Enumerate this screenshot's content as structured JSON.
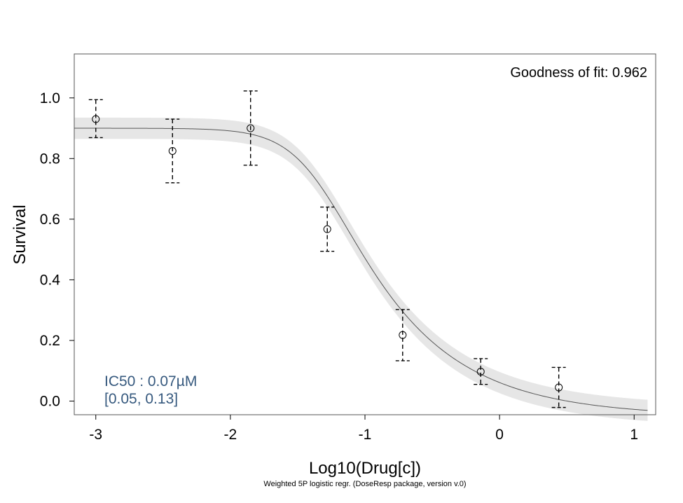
{
  "chart_data": {
    "type": "scatter",
    "title": "",
    "xlabel": "Log10(Drug[c])",
    "ylabel": "Survival",
    "caption": "Weighted 5P logistic regr. (DoseResp package, version v.0)",
    "xlim": [
      -3.16,
      1.16
    ],
    "ylim": [
      -0.045,
      1.145
    ],
    "x_ticks": [
      -3,
      -2,
      -1,
      0,
      1
    ],
    "x_tick_labels": [
      "-3",
      "-2",
      "-1",
      "0",
      "1"
    ],
    "y_ticks": [
      0.0,
      0.2,
      0.4,
      0.6,
      0.8,
      1.0
    ],
    "y_tick_labels": [
      "0.0",
      "0.2",
      "0.4",
      "0.6",
      "0.8",
      "1.0"
    ],
    "grid": false,
    "points": {
      "x": [
        -3.0,
        -2.43,
        -1.85,
        -1.28,
        -0.72,
        -0.14,
        0.44
      ],
      "y": [
        0.93,
        0.825,
        0.9,
        0.567,
        0.218,
        0.097,
        0.045
      ],
      "y_low": [
        0.869,
        0.72,
        0.778,
        0.494,
        0.133,
        0.055,
        -0.021
      ],
      "y_high": [
        0.994,
        0.93,
        1.023,
        0.64,
        0.302,
        0.14,
        0.111
      ]
    },
    "fit": {
      "model": "5P logistic",
      "top": 0.9,
      "bottom": -0.05,
      "log_ec50": -1.35,
      "hill": 2.3,
      "asymmetry": 0.3,
      "x_range": [
        -3.16,
        1.1
      ],
      "band_halfwidth": 0.035
    },
    "annotations": {
      "goodness_of_fit": "Goodness of fit: 0.962",
      "ic50_line1": "IC50 : 0.07µM",
      "ic50_line2": "[0.05, 0.13]"
    },
    "colors": {
      "band": "#e6e6e6",
      "fit_line": "#555555",
      "ic50_text": "#36597e"
    }
  }
}
